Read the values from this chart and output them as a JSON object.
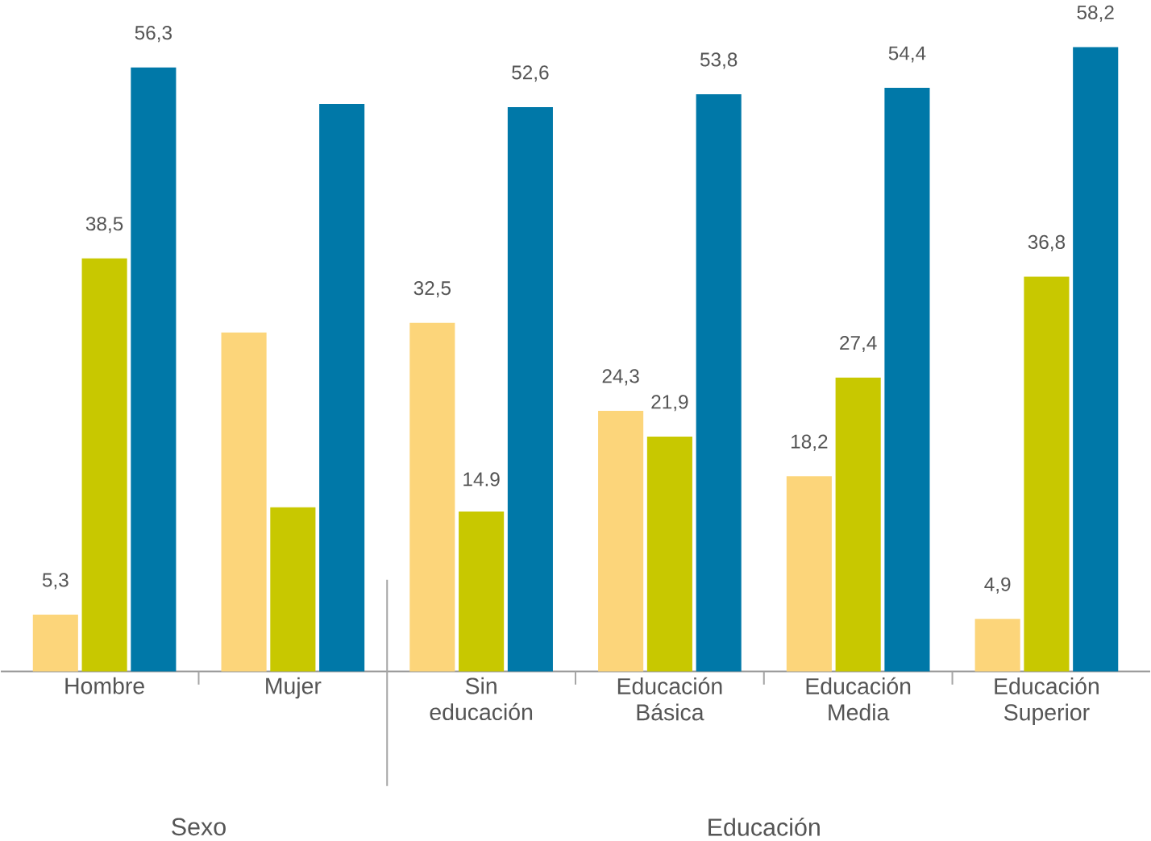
{
  "chart_data": {
    "type": "bar",
    "categories": [
      "Hombre",
      "Mujer",
      "Sin educación",
      "Educación Básica",
      "Educación Media",
      "Educación Superior"
    ],
    "series": [
      {
        "color": "#fcd57a",
        "values": [
          5.3,
          31.6,
          32.5,
          24.3,
          18.2,
          4.9
        ],
        "value_labels": [
          "5,3",
          null,
          "32,5",
          "24,3",
          "18,2",
          "4,9"
        ]
      },
      {
        "color": "#c8c800",
        "values": [
          38.5,
          15.3,
          14.9,
          21.9,
          27.4,
          36.8
        ],
        "value_labels": [
          "38,5",
          null,
          "14.9",
          "21,9",
          "27,4",
          "36,8"
        ]
      },
      {
        "color": "#0078a8",
        "values": [
          56.3,
          52.9,
          52.6,
          53.8,
          54.4,
          58.2
        ],
        "value_labels": [
          "56,3",
          null,
          "52,6",
          "53,8",
          "54,4",
          "58,2"
        ]
      }
    ],
    "annotations": [
      "Sexo",
      "Educación"
    ]
  }
}
